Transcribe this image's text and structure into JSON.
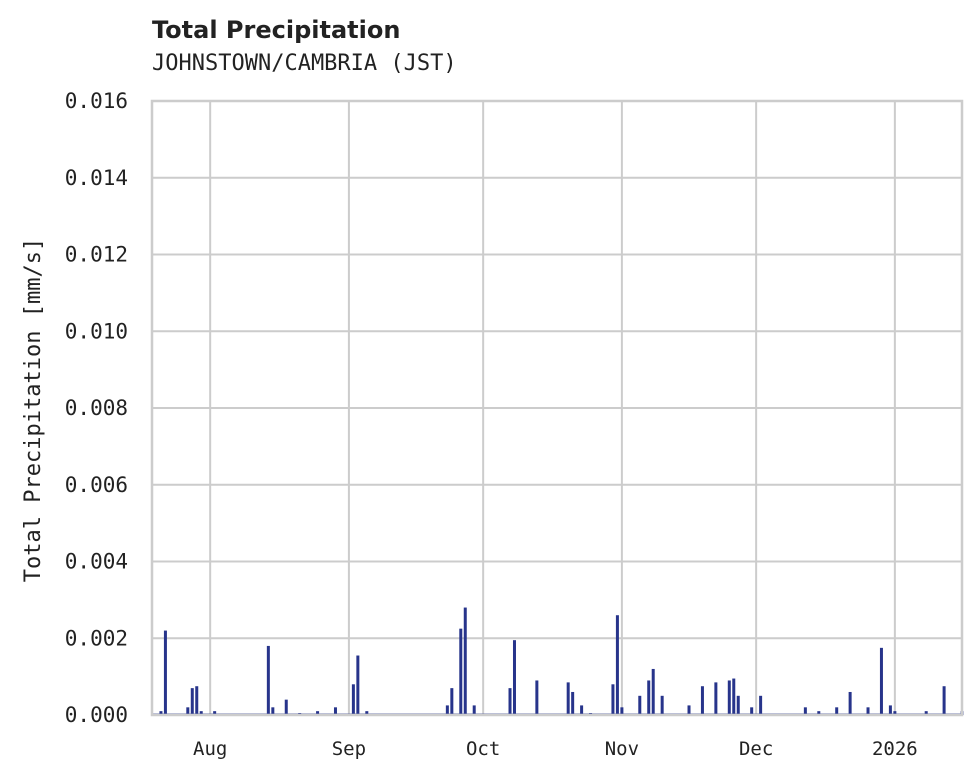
{
  "header": {
    "title": "Total Precipitation",
    "subtitle": "JOHNSTOWN/CAMBRIA (JST)"
  },
  "colors": {
    "series": "#27348b",
    "grid": "#cccccc",
    "text": "#222222"
  },
  "chart_data": {
    "type": "bar",
    "title": "Total Precipitation",
    "subtitle": "JOHNSTOWN/CAMBRIA (JST)",
    "xlabel": "",
    "ylabel": "Total Precipitation [mm/s]",
    "ylim": [
      0.0,
      0.016
    ],
    "yticks": [
      "0.000",
      "0.002",
      "0.004",
      "0.006",
      "0.008",
      "0.010",
      "0.012",
      "0.014",
      "0.016"
    ],
    "xticks": [
      "Aug",
      "Sep",
      "Oct",
      "Nov",
      "Dec",
      "2026"
    ],
    "grid": true,
    "legend": null,
    "x_range": [
      "2025-07-19",
      "2026-01-16"
    ],
    "series": [
      {
        "name": "Total Precipitation",
        "points": [
          {
            "date": "2025-07-21",
            "value": 0.0001
          },
          {
            "date": "2025-07-22",
            "value": 0.0022
          },
          {
            "date": "2025-07-27",
            "value": 0.0002
          },
          {
            "date": "2025-07-28",
            "value": 0.0007
          },
          {
            "date": "2025-07-29",
            "value": 0.00075
          },
          {
            "date": "2025-07-30",
            "value": 0.0001
          },
          {
            "date": "2025-08-02",
            "value": 0.0001
          },
          {
            "date": "2025-08-14",
            "value": 0.0018
          },
          {
            "date": "2025-08-15",
            "value": 0.0002
          },
          {
            "date": "2025-08-18",
            "value": 0.0004
          },
          {
            "date": "2025-08-21",
            "value": 5e-05
          },
          {
            "date": "2025-08-25",
            "value": 0.0001
          },
          {
            "date": "2025-08-29",
            "value": 0.0002
          },
          {
            "date": "2025-09-02",
            "value": 0.0008
          },
          {
            "date": "2025-09-03",
            "value": 0.00155
          },
          {
            "date": "2025-09-05",
            "value": 0.0001
          },
          {
            "date": "2025-09-23",
            "value": 0.00025
          },
          {
            "date": "2025-09-24",
            "value": 0.0007
          },
          {
            "date": "2025-09-26",
            "value": 0.00225
          },
          {
            "date": "2025-09-27",
            "value": 0.0028
          },
          {
            "date": "2025-09-29",
            "value": 0.00025
          },
          {
            "date": "2025-10-07",
            "value": 0.0007
          },
          {
            "date": "2025-10-08",
            "value": 0.00195
          },
          {
            "date": "2025-10-13",
            "value": 0.0009
          },
          {
            "date": "2025-10-20",
            "value": 0.00085
          },
          {
            "date": "2025-10-21",
            "value": 0.0006
          },
          {
            "date": "2025-10-23",
            "value": 0.00025
          },
          {
            "date": "2025-10-25",
            "value": 5e-05
          },
          {
            "date": "2025-10-30",
            "value": 0.0008
          },
          {
            "date": "2025-10-31",
            "value": 0.0026
          },
          {
            "date": "2025-11-01",
            "value": 0.0002
          },
          {
            "date": "2025-11-05",
            "value": 0.0005
          },
          {
            "date": "2025-11-07",
            "value": 0.0009
          },
          {
            "date": "2025-11-08",
            "value": 0.0012
          },
          {
            "date": "2025-11-10",
            "value": 0.0005
          },
          {
            "date": "2025-11-16",
            "value": 0.00025
          },
          {
            "date": "2025-11-19",
            "value": 0.00075
          },
          {
            "date": "2025-11-22",
            "value": 0.00085
          },
          {
            "date": "2025-11-25",
            "value": 0.0009
          },
          {
            "date": "2025-11-26",
            "value": 0.00095
          },
          {
            "date": "2025-11-27",
            "value": 0.0005
          },
          {
            "date": "2025-11-30",
            "value": 0.0002
          },
          {
            "date": "2025-12-02",
            "value": 0.0005
          },
          {
            "date": "2025-12-12",
            "value": 0.0002
          },
          {
            "date": "2025-12-15",
            "value": 0.0001
          },
          {
            "date": "2025-12-19",
            "value": 0.0002
          },
          {
            "date": "2025-12-22",
            "value": 0.0006
          },
          {
            "date": "2025-12-26",
            "value": 0.0002
          },
          {
            "date": "2025-12-29",
            "value": 0.00175
          },
          {
            "date": "2025-12-31",
            "value": 0.00025
          },
          {
            "date": "2026-01-01",
            "value": 0.0001
          },
          {
            "date": "2026-01-08",
            "value": 0.0001
          },
          {
            "date": "2026-01-12",
            "value": 0.00075
          },
          {
            "date": "2026-01-16",
            "value": 0.0001
          }
        ]
      }
    ]
  }
}
